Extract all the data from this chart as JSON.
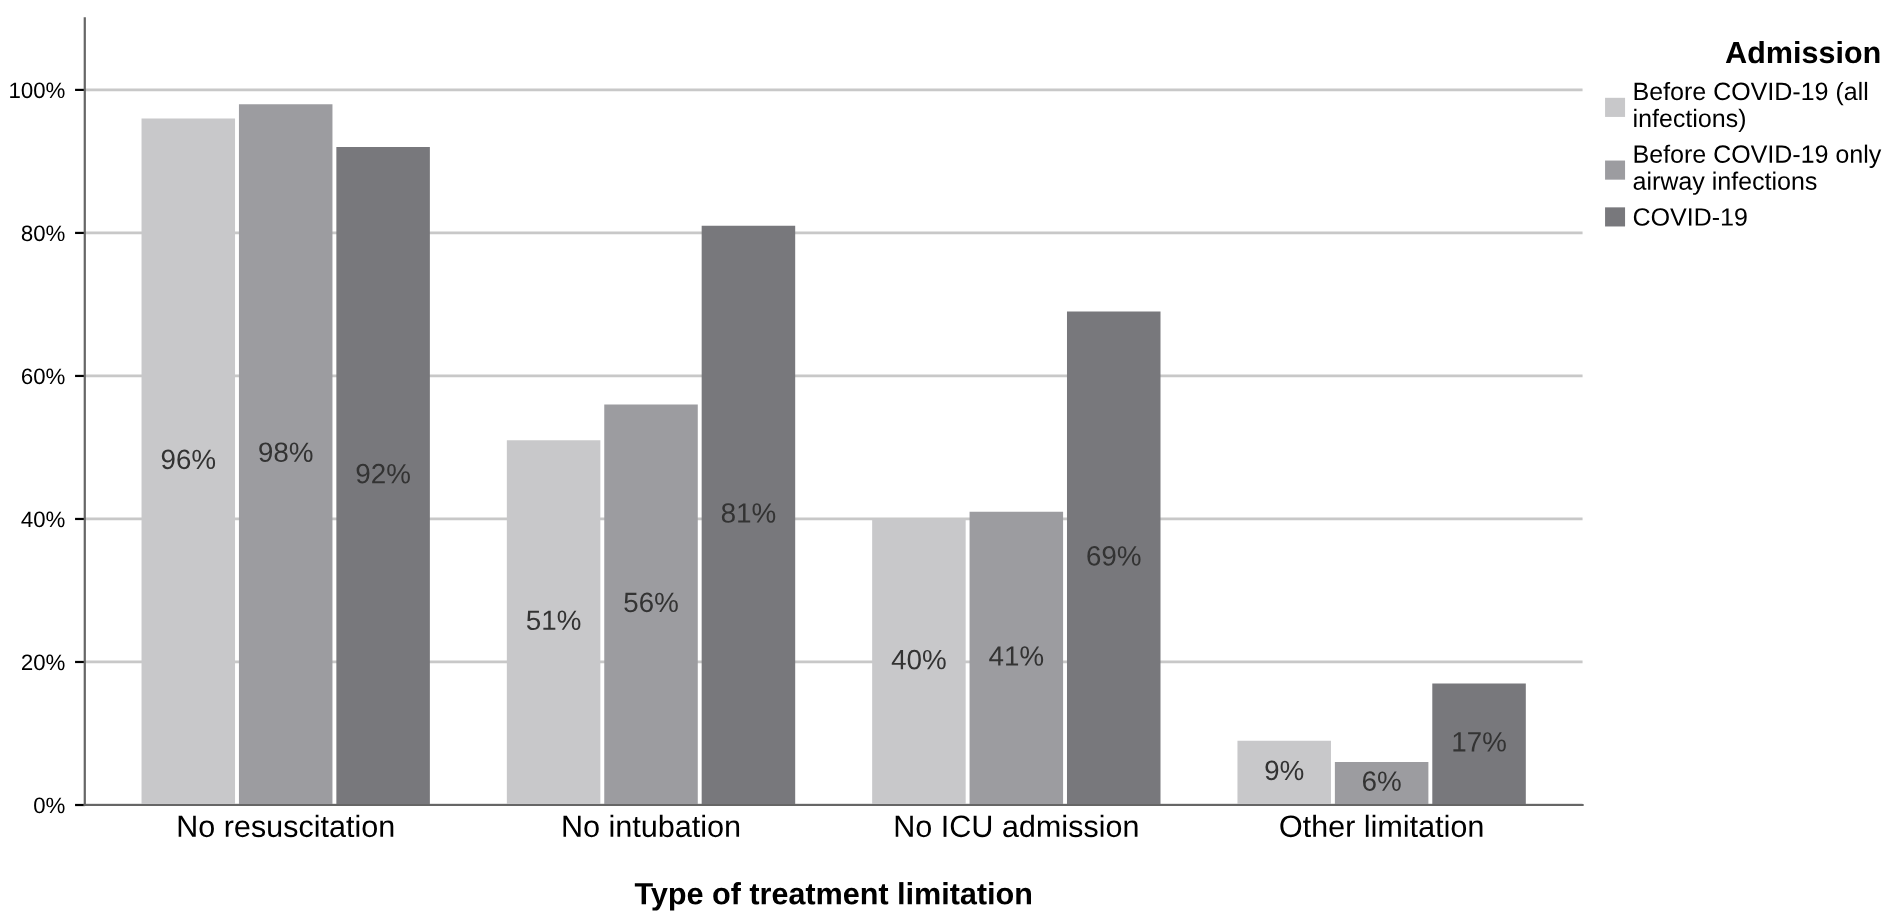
{
  "chart_data": {
    "type": "bar",
    "xlabel": "Type of treatment limitation",
    "legend_title": "Admission",
    "categories": [
      "No resuscitation",
      "No intubation",
      "No ICU admission",
      "Other limitation"
    ],
    "series": [
      {
        "name": "Before COVID-19 (all\ninfections)",
        "color": "#c8c8ca",
        "values": [
          96,
          51,
          40,
          9
        ],
        "value_labels": [
          "96%",
          "51%",
          "40%",
          "9%"
        ]
      },
      {
        "name": "Before COVID-19 only\nairway infections",
        "color": "#9c9ca0",
        "values": [
          98,
          56,
          41,
          6
        ],
        "value_labels": [
          "98%",
          "56%",
          "41%",
          "6%"
        ]
      },
      {
        "name": "COVID-19",
        "color": "#78787c",
        "values": [
          92,
          81,
          69,
          17
        ],
        "value_labels": [
          "92%",
          "81%",
          "69%",
          "17%"
        ]
      }
    ],
    "ylim": [
      0,
      110
    ],
    "yticks": [
      {
        "value": 0,
        "label": "0%"
      },
      {
        "value": 20,
        "label": "20%"
      },
      {
        "value": 40,
        "label": "40%"
      },
      {
        "value": 60,
        "label": "60%"
      },
      {
        "value": 80,
        "label": "80%"
      },
      {
        "value": 100,
        "label": "100%"
      }
    ],
    "grid": "y",
    "legend": "top right"
  }
}
